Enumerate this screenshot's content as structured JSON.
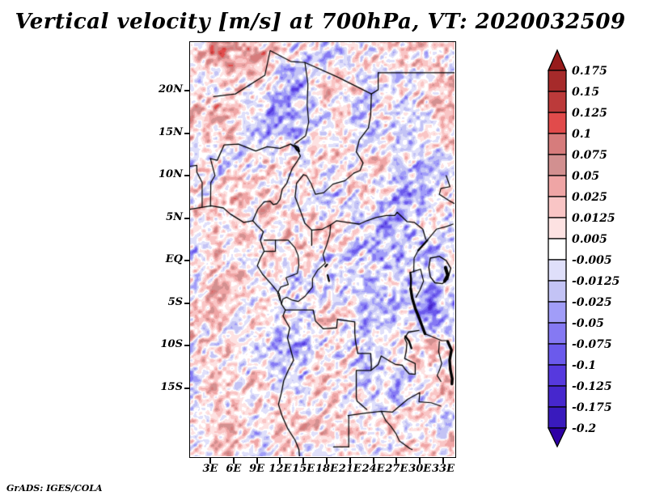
{
  "title": "Vertical velocity [m/s] at 700hPa, VT: 2020032509",
  "footer": "GrADS: IGES/COLA",
  "map": {
    "y_tick_labels": [
      "20N",
      "15N",
      "10N",
      "5N",
      "EQ",
      "5S",
      "10S",
      "15S"
    ],
    "x_tick_labels": [
      "3E",
      "6E",
      "9E",
      "12E",
      "15E",
      "18E",
      "21E",
      "24E",
      "27E",
      "30E",
      "33E"
    ]
  },
  "colorbar": {
    "labels": [
      "0.175",
      "0.15",
      "0.125",
      "0.1",
      "0.075",
      "0.05",
      "0.025",
      "0.0125",
      "0.005",
      "-0.005",
      "-0.0125",
      "-0.025",
      "-0.05",
      "-0.075",
      "-0.1",
      "-0.125",
      "-0.175",
      "-0.2"
    ],
    "colors": [
      "#971b1b",
      "#a62a2a",
      "#bc3a3a",
      "#e14b4b",
      "#d67c7c",
      "#d29090",
      "#efa5a5",
      "#f9c5c5",
      "#fde2e2",
      "#ffffff",
      "#dfdffa",
      "#c3c3f5",
      "#a19df8",
      "#8579f3",
      "#6b5aec",
      "#5639de",
      "#4627cd",
      "#391abd",
      "#2e00a5"
    ]
  },
  "chart_data": {
    "type": "heatmap",
    "title": "Vertical velocity [m/s] at 700hPa, VT: 2020032509",
    "variable": "Vertical velocity",
    "units": "m/s",
    "pressure_level_hPa": 700,
    "valid_time": "2020032509",
    "x_axis": {
      "tick_labels": [
        "3E",
        "6E",
        "9E",
        "12E",
        "15E",
        "18E",
        "21E",
        "24E",
        "27E",
        "30E",
        "33E"
      ],
      "lon_range_deg_east": [
        0,
        35
      ]
    },
    "y_axis": {
      "tick_labels": [
        "20N",
        "15N",
        "10N",
        "5N",
        "EQ",
        "5S",
        "10S",
        "15S"
      ],
      "lat_range_deg": [
        -23.1,
        25.6
      ]
    },
    "levels": [
      0.175,
      0.15,
      0.125,
      0.1,
      0.075,
      0.05,
      0.025,
      0.0125,
      0.005,
      -0.005,
      -0.0125,
      -0.025,
      -0.05,
      -0.075,
      -0.1,
      -0.125,
      -0.175,
      -0.2
    ],
    "palette_red_to_blue": [
      "#971b1b",
      "#a62a2a",
      "#bc3a3a",
      "#e14b4b",
      "#d67c7c",
      "#d29090",
      "#efa5a5",
      "#f9c5c5",
      "#fde2e2",
      "#ffffff",
      "#dfdffa",
      "#c3c3f5",
      "#a19df8",
      "#8579f3",
      "#6b5aec",
      "#5639de",
      "#4627cd",
      "#391abd",
      "#2e00a5"
    ],
    "legend_position": "right",
    "legend_style": "vertical color bar with open-ended arrow caps at both extremes",
    "region": "Central Africa with national borders and lakes drawn in black",
    "field_appearance": "fine mottled grid-point shading, positive anomalies red, negative blue, near-zero white"
  }
}
